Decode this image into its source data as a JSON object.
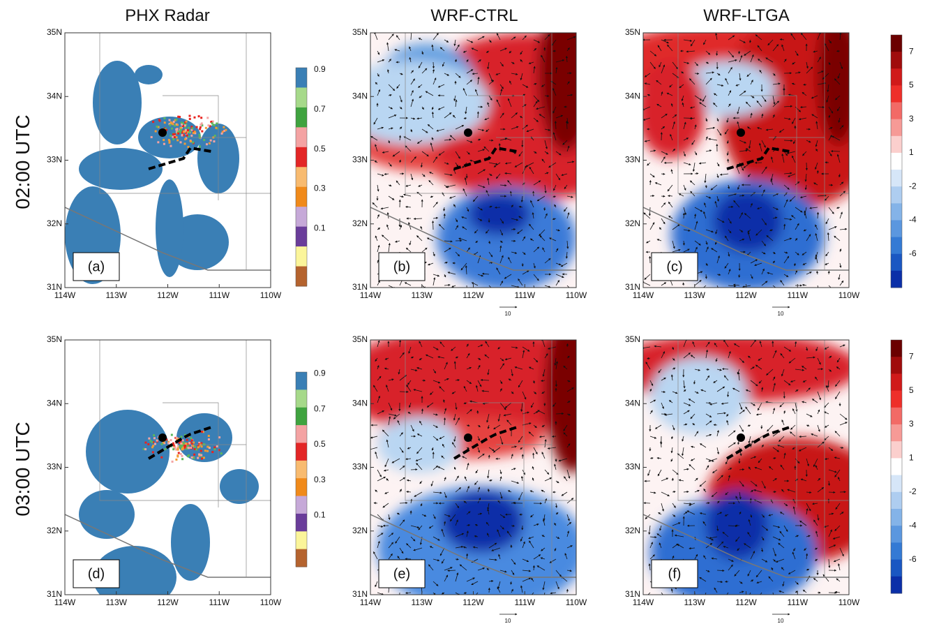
{
  "columns": [
    "PHX Radar",
    "WRF-CTRL",
    "WRF-LTGA"
  ],
  "rows": [
    "02:00 UTC",
    "03:00 UTC"
  ],
  "lat_ticks": [
    "35N",
    "34N",
    "33N",
    "32N",
    "31N"
  ],
  "lon_ticks": [
    "114W",
    "113W",
    "112W",
    "111W",
    "110W"
  ],
  "panels": [
    "(a)",
    "(b)",
    "(c)",
    "(d)",
    "(e)",
    "(f)"
  ],
  "radar_colorbar": [
    0.9,
    0.7,
    0.5,
    0.3,
    0.1
  ],
  "model_colorbar": [
    7,
    5,
    3,
    1,
    -2,
    -4,
    -6
  ],
  "vector_scale": "10"
}
